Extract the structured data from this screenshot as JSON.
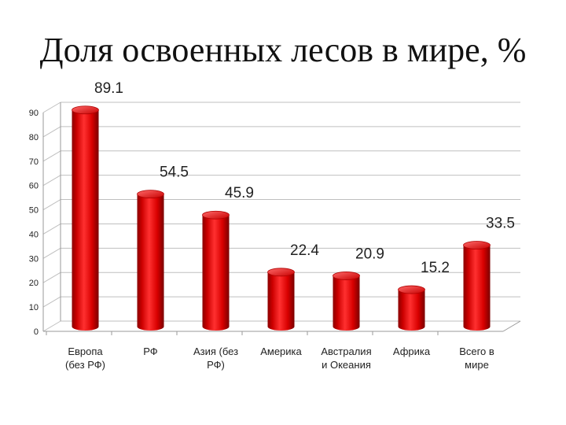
{
  "chart_data": {
    "type": "bar",
    "title": "Доля освоенных лесов в мире, %",
    "categories": [
      [
        "Европа",
        "(без РФ)"
      ],
      [
        "РФ"
      ],
      [
        "Азия (без",
        "РФ)"
      ],
      [
        "Америка"
      ],
      [
        "Австралия",
        "и Океания"
      ],
      [
        "Африка"
      ],
      [
        "Всего в",
        "мире"
      ]
    ],
    "values": [
      89.1,
      54.5,
      45.9,
      22.4,
      20.9,
      15.2,
      33.5
    ],
    "data_labels": [
      "89.1",
      "54.5",
      "45.9",
      "22.4",
      "20.9",
      "15.2",
      "33.5"
    ],
    "yticks": [
      0,
      10,
      20,
      30,
      40,
      50,
      60,
      70,
      80,
      90
    ],
    "ylim": [
      0,
      90
    ],
    "grid": true,
    "legend": "none",
    "colors": {
      "bar": "#e00000",
      "bar_dark": "#8a0000",
      "bar_light": "#ff5a5a",
      "grid": "#bfbfbf"
    }
  }
}
